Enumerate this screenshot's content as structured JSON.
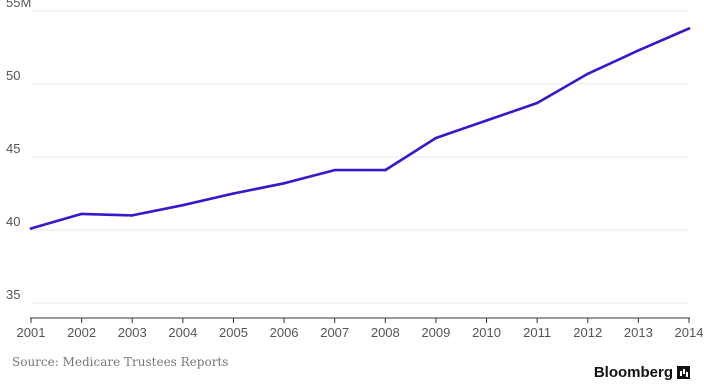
{
  "chart_data": {
    "type": "line",
    "title": "",
    "xlabel": "",
    "ylabel": "",
    "x": [
      "2001",
      "2002",
      "2003",
      "2004",
      "2005",
      "2006",
      "2007",
      "2008",
      "2009",
      "2010",
      "2011",
      "2012",
      "2013",
      "2014"
    ],
    "series": [
      {
        "values": [
          40.1,
          41.1,
          41.0,
          41.7,
          42.5,
          43.2,
          44.1,
          44.1,
          46.3,
          47.5,
          48.7,
          50.7,
          52.3,
          53.8
        ]
      }
    ],
    "y_ticks": [
      "55M",
      "50",
      "45",
      "40",
      "35"
    ],
    "y_tick_values": [
      55,
      50,
      45,
      40,
      35
    ],
    "ylim": [
      35,
      55
    ],
    "grid": true,
    "legend": "none",
    "colors": {
      "line": "#3a16cc",
      "grid": "#e8e8e8",
      "axis": "#333333",
      "tick_text": "#555555"
    }
  },
  "source": "Source: Medicare Trustees Reports",
  "brand": "Bloomberg"
}
